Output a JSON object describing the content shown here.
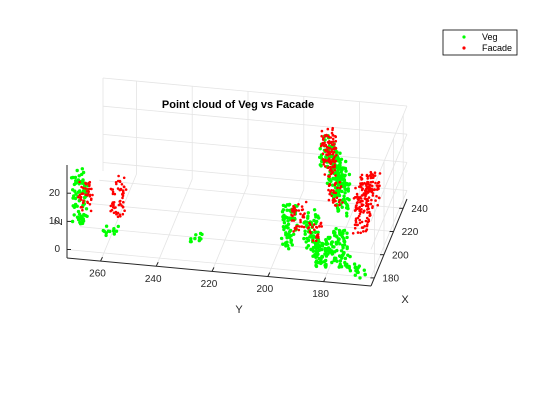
{
  "chart_data": {
    "type": "scatter",
    "projection": "3d",
    "title": "Point cloud of Veg vs Facade",
    "xlabel": "X",
    "ylabel": "Y",
    "zlabel": "Z",
    "x_ticks": [
      "180",
      "200",
      "220",
      "240"
    ],
    "y_ticks": [
      "260",
      "240",
      "220",
      "200",
      "180"
    ],
    "z_ticks": [
      "0",
      "10",
      "20"
    ],
    "xlim": [
      173,
      248
    ],
    "ylim": [
      163,
      272
    ],
    "zlim": [
      -3,
      30
    ],
    "grid": true,
    "legend_position": "top-right outside",
    "series": [
      {
        "name": "Veg",
        "color": "#00ff00",
        "clusters": [
          {
            "x": 176,
            "y": 268,
            "z": [
              8,
              27
            ]
          },
          {
            "x": 177,
            "y": 257,
            "z": [
              5,
              8
            ]
          },
          {
            "x": 178,
            "y": 227,
            "z": [
              5,
              7
            ]
          },
          {
            "x": 177,
            "y": 193,
            "z": [
              6,
              22
            ]
          },
          {
            "x": 177,
            "y": 185,
            "z": [
              5,
              20
            ]
          },
          {
            "x": 176,
            "y": 181,
            "z": [
              0,
              12
            ]
          },
          {
            "x": 187,
            "y": 180,
            "z": [
              -2,
              6
            ]
          },
          {
            "x": 184,
            "y": 174,
            "z": [
              -3,
              3
            ]
          },
          {
            "x": 198,
            "y": 178,
            "z": [
              -3,
              6
            ]
          },
          {
            "x": 178,
            "y": 168,
            "z": [
              -3,
              1
            ]
          },
          {
            "x": 240,
            "y": 190,
            "z": [
              10,
              20
            ]
          },
          {
            "x": 228,
            "y": 186,
            "z": [
              8,
              22
            ]
          },
          {
            "x": 222,
            "y": 183,
            "z": [
              6,
              20
            ]
          },
          {
            "x": 212,
            "y": 180,
            "z": [
              4,
              18
            ]
          }
        ]
      },
      {
        "name": "Facade",
        "color": "#ff0000",
        "clusters": [
          {
            "x": 176,
            "y": 266,
            "z": [
              14,
              24
            ]
          },
          {
            "x": 175,
            "y": 254,
            "z": [
              12,
              26
            ]
          },
          {
            "x": 178,
            "y": 190,
            "z": [
              12,
              22
            ]
          },
          {
            "x": 177,
            "y": 184,
            "z": [
              10,
              16
            ]
          },
          {
            "x": 237,
            "y": 189,
            "z": [
              10,
              24
            ]
          },
          {
            "x": 230,
            "y": 188,
            "z": [
              10,
              22
            ]
          },
          {
            "x": 215,
            "y": 183,
            "z": [
              6,
              14
            ]
          },
          {
            "x": 205,
            "y": 172,
            "z": [
              2,
              18
            ]
          },
          {
            "x": 215,
            "y": 172,
            "z": [
              2,
              18
            ]
          },
          {
            "x": 229,
            "y": 172,
            "z": [
              2,
              14
            ]
          }
        ]
      }
    ]
  }
}
